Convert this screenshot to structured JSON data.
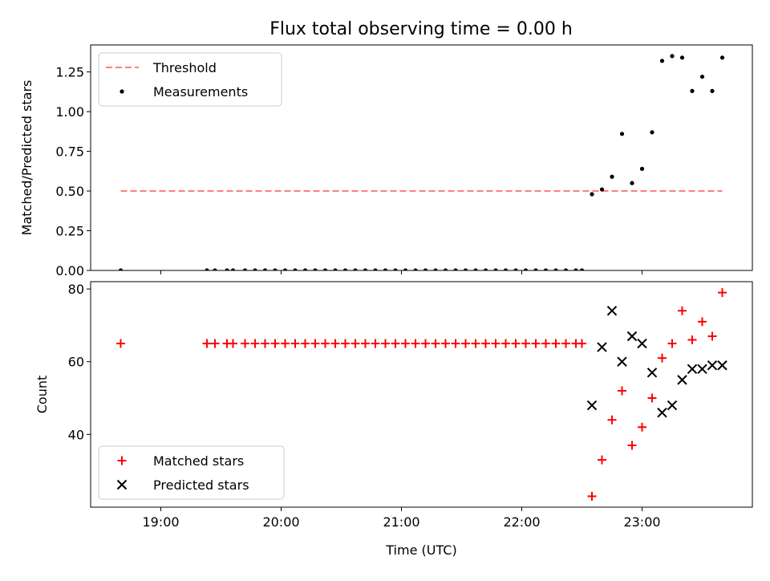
{
  "figure": {
    "title": "Flux total observing time = 0.00 h"
  },
  "chart_data": [
    {
      "type": "scatter",
      "xlabel": "",
      "ylabel": "Matched/Predicted stars",
      "xlim": [
        "18:25",
        "23:55"
      ],
      "ylim": [
        0,
        1.42
      ],
      "x_ticks": [
        "19:00",
        "20:00",
        "21:00",
        "22:00",
        "23:00"
      ],
      "y_ticks": [
        "0.00",
        "0.25",
        "0.50",
        "0.75",
        "1.00",
        "1.25"
      ],
      "legend": {
        "position": "top-left",
        "entries": [
          "Threshold",
          "Measurements"
        ]
      },
      "threshold": {
        "name": "Threshold",
        "value": 0.5,
        "x_start": "18:40",
        "x_end": "23:40",
        "color": "#ff7f7f",
        "style": "dashed"
      },
      "series": [
        {
          "name": "Measurements",
          "marker": "dot",
          "color": "#000000",
          "points": [
            [
              "18:40",
              0
            ],
            [
              "19:23",
              0
            ],
            [
              "19:27",
              0
            ],
            [
              "19:33",
              0
            ],
            [
              "19:36",
              0
            ],
            [
              "19:42",
              0
            ],
            [
              "19:47",
              0
            ],
            [
              "19:52",
              0
            ],
            [
              "19:57",
              0
            ],
            [
              "20:02",
              0
            ],
            [
              "20:07",
              0
            ],
            [
              "20:12",
              0
            ],
            [
              "20:17",
              0
            ],
            [
              "20:22",
              0
            ],
            [
              "20:27",
              0
            ],
            [
              "20:32",
              0
            ],
            [
              "20:37",
              0
            ],
            [
              "20:42",
              0
            ],
            [
              "20:47",
              0
            ],
            [
              "20:52",
              0
            ],
            [
              "20:57",
              0
            ],
            [
              "21:02",
              0
            ],
            [
              "21:07",
              0
            ],
            [
              "21:12",
              0
            ],
            [
              "21:17",
              0
            ],
            [
              "21:22",
              0
            ],
            [
              "21:27",
              0
            ],
            [
              "21:32",
              0
            ],
            [
              "21:37",
              0
            ],
            [
              "21:42",
              0
            ],
            [
              "21:47",
              0
            ],
            [
              "21:52",
              0
            ],
            [
              "21:57",
              0
            ],
            [
              "22:02",
              0
            ],
            [
              "22:07",
              0
            ],
            [
              "22:12",
              0
            ],
            [
              "22:17",
              0
            ],
            [
              "22:22",
              0
            ],
            [
              "22:27",
              0
            ],
            [
              "22:30",
              0
            ],
            [
              "22:35",
              0.48
            ],
            [
              "22:40",
              0.51
            ],
            [
              "22:45",
              0.59
            ],
            [
              "22:50",
              0.86
            ],
            [
              "22:55",
              0.55
            ],
            [
              "23:00",
              0.64
            ],
            [
              "23:05",
              0.87
            ],
            [
              "23:10",
              1.32
            ],
            [
              "23:15",
              1.35
            ],
            [
              "23:20",
              1.34
            ],
            [
              "23:25",
              1.13
            ],
            [
              "23:30",
              1.22
            ],
            [
              "23:35",
              1.13
            ],
            [
              "23:40",
              1.34
            ]
          ]
        }
      ]
    },
    {
      "type": "scatter",
      "xlabel": "Time (UTC)",
      "ylabel": "Count",
      "xlim": [
        "18:25",
        "23:55"
      ],
      "ylim": [
        20,
        82
      ],
      "x_ticks": [
        "19:00",
        "20:00",
        "21:00",
        "22:00",
        "23:00"
      ],
      "y_ticks": [
        "40",
        "60",
        "80"
      ],
      "legend": {
        "position": "bottom-left",
        "entries": [
          "Matched stars",
          "Predicted stars"
        ]
      },
      "series": [
        {
          "name": "Matched stars",
          "marker": "plus",
          "color": "#ff0000",
          "points": [
            [
              "18:40",
              65
            ],
            [
              "19:23",
              65
            ],
            [
              "19:27",
              65
            ],
            [
              "19:33",
              65
            ],
            [
              "19:36",
              65
            ],
            [
              "19:42",
              65
            ],
            [
              "19:47",
              65
            ],
            [
              "19:52",
              65
            ],
            [
              "19:57",
              65
            ],
            [
              "20:02",
              65
            ],
            [
              "20:07",
              65
            ],
            [
              "20:12",
              65
            ],
            [
              "20:17",
              65
            ],
            [
              "20:22",
              65
            ],
            [
              "20:27",
              65
            ],
            [
              "20:32",
              65
            ],
            [
              "20:37",
              65
            ],
            [
              "20:42",
              65
            ],
            [
              "20:47",
              65
            ],
            [
              "20:52",
              65
            ],
            [
              "20:57",
              65
            ],
            [
              "21:02",
              65
            ],
            [
              "21:07",
              65
            ],
            [
              "21:12",
              65
            ],
            [
              "21:17",
              65
            ],
            [
              "21:22",
              65
            ],
            [
              "21:27",
              65
            ],
            [
              "21:32",
              65
            ],
            [
              "21:37",
              65
            ],
            [
              "21:42",
              65
            ],
            [
              "21:47",
              65
            ],
            [
              "21:52",
              65
            ],
            [
              "21:57",
              65
            ],
            [
              "22:02",
              65
            ],
            [
              "22:07",
              65
            ],
            [
              "22:12",
              65
            ],
            [
              "22:17",
              65
            ],
            [
              "22:22",
              65
            ],
            [
              "22:27",
              65
            ],
            [
              "22:30",
              65
            ],
            [
              "22:35",
              23
            ],
            [
              "22:40",
              33
            ],
            [
              "22:45",
              44
            ],
            [
              "22:50",
              52
            ],
            [
              "22:55",
              37
            ],
            [
              "23:00",
              42
            ],
            [
              "23:05",
              50
            ],
            [
              "23:10",
              61
            ],
            [
              "23:15",
              65
            ],
            [
              "23:20",
              74
            ],
            [
              "23:25",
              66
            ],
            [
              "23:30",
              71
            ],
            [
              "23:35",
              67
            ],
            [
              "23:40",
              79
            ]
          ]
        },
        {
          "name": "Predicted stars",
          "marker": "x",
          "color": "#000000",
          "points": [
            [
              "22:35",
              48
            ],
            [
              "22:40",
              64
            ],
            [
              "22:45",
              74
            ],
            [
              "22:50",
              60
            ],
            [
              "22:55",
              67
            ],
            [
              "23:00",
              65
            ],
            [
              "23:05",
              57
            ],
            [
              "23:10",
              46
            ],
            [
              "23:15",
              48
            ],
            [
              "23:20",
              55
            ],
            [
              "23:25",
              58
            ],
            [
              "23:30",
              58
            ],
            [
              "23:35",
              59
            ],
            [
              "23:40",
              59
            ]
          ]
        }
      ]
    }
  ]
}
